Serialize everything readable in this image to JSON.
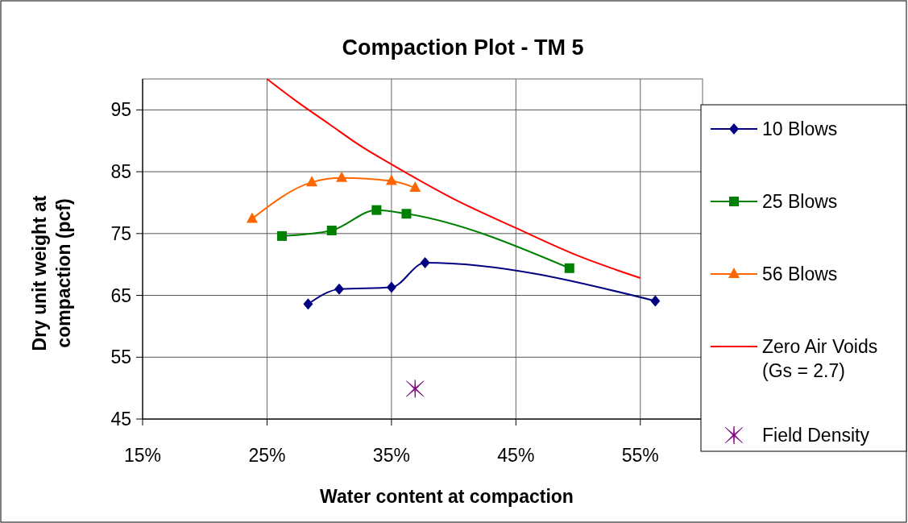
{
  "chart_data": {
    "type": "line",
    "title": "Compaction Plot - TM 5",
    "xlabel": "Water content at compaction",
    "ylabel": "Dry unit weight at compaction (pcf)",
    "xlim": [
      15,
      60
    ],
    "xticks": [
      {
        "value": 15,
        "label": "15%"
      },
      {
        "value": 25,
        "label": "25%"
      },
      {
        "value": 35,
        "label": "35%"
      },
      {
        "value": 45,
        "label": "45%"
      },
      {
        "value": 55,
        "label": "55%"
      }
    ],
    "ylim": [
      45,
      100
    ],
    "yticks": [
      45,
      55,
      65,
      75,
      85,
      95
    ],
    "grid": true,
    "legend": "right",
    "series": [
      {
        "name": "10 Blows",
        "color": "#000080",
        "marker": "diamond",
        "x": [
          28.3,
          30.8,
          35.0,
          37.7,
          56.2
        ],
        "values": [
          63.6,
          66.0,
          66.3,
          70.3,
          64.1
        ]
      },
      {
        "name": "25 Blows",
        "color": "#008000",
        "marker": "square",
        "x": [
          26.2,
          30.2,
          33.8,
          36.2,
          49.3
        ],
        "values": [
          74.6,
          75.5,
          78.8,
          78.2,
          69.4
        ]
      },
      {
        "name": "56 Blows",
        "color": "#ff6600",
        "marker": "triangle",
        "x": [
          23.8,
          28.6,
          31.0,
          35.0,
          36.9
        ],
        "values": [
          77.4,
          83.3,
          84.0,
          83.5,
          82.4
        ]
      },
      {
        "name": "Zero Air Voids (Gs = 2.7)",
        "color": "#ff0000",
        "marker": "none",
        "x": [
          25,
          27.5,
          30,
          32.5,
          35,
          40,
          45,
          50,
          55
        ],
        "values": [
          100,
          96.2,
          92.7,
          89.2,
          86.2,
          80.6,
          75.9,
          71.4,
          67.8
        ]
      },
      {
        "name": "Field Density",
        "type": "scatter",
        "color": "#800080",
        "marker": "cross",
        "x": [
          36.9
        ],
        "values": [
          49.9
        ]
      }
    ]
  }
}
